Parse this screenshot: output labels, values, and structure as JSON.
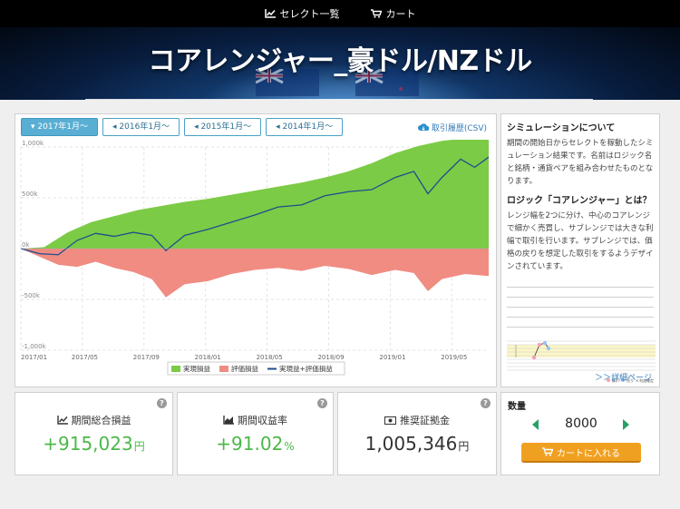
{
  "nav": {
    "items": [
      {
        "label": "セレクト一覧"
      },
      {
        "label": "カート"
      }
    ]
  },
  "hero": {
    "title": "コアレンジャー_豪ドル/NZドル"
  },
  "tabs": [
    {
      "label": "2017年1月～",
      "active": true
    },
    {
      "label": "2016年1月～",
      "active": false
    },
    {
      "label": "2015年1月～",
      "active": false
    },
    {
      "label": "2014年1月～",
      "active": false
    }
  ],
  "csv_label": "取引履歴(CSV)",
  "chart_data": {
    "type": "area",
    "x_ticks": [
      "2017/01",
      "2017/05",
      "2017/09",
      "2018/01",
      "2018/05",
      "2018/09",
      "2019/01",
      "2019/05"
    ],
    "y_ticks": [
      "1,000k",
      "500k",
      "0k",
      "-500k",
      "-1,000k"
    ],
    "ylim": [
      -1000000,
      1000000
    ],
    "grid": true,
    "legend_position": "bottom",
    "series": [
      {
        "name": "実現損益",
        "type": "area",
        "color": "#7ccb46",
        "points": [
          [
            0,
            0
          ],
          [
            0.05,
            15000
          ],
          [
            0.1,
            160000
          ],
          [
            0.15,
            260000
          ],
          [
            0.2,
            320000
          ],
          [
            0.25,
            380000
          ],
          [
            0.3,
            420000
          ],
          [
            0.35,
            460000
          ],
          [
            0.4,
            490000
          ],
          [
            0.45,
            530000
          ],
          [
            0.5,
            570000
          ],
          [
            0.55,
            610000
          ],
          [
            0.6,
            650000
          ],
          [
            0.65,
            700000
          ],
          [
            0.7,
            760000
          ],
          [
            0.75,
            840000
          ],
          [
            0.8,
            940000
          ],
          [
            0.85,
            1010000
          ],
          [
            0.9,
            1060000
          ],
          [
            0.95,
            1085000
          ],
          [
            1.0,
            1100000
          ]
        ]
      },
      {
        "name": "評価損益",
        "type": "area",
        "color": "#f08c82",
        "points": [
          [
            0,
            0
          ],
          [
            0.04,
            -80000
          ],
          [
            0.08,
            -160000
          ],
          [
            0.12,
            -180000
          ],
          [
            0.16,
            -130000
          ],
          [
            0.2,
            -190000
          ],
          [
            0.24,
            -230000
          ],
          [
            0.28,
            -300000
          ],
          [
            0.31,
            -480000
          ],
          [
            0.35,
            -350000
          ],
          [
            0.4,
            -320000
          ],
          [
            0.45,
            -250000
          ],
          [
            0.5,
            -210000
          ],
          [
            0.55,
            -190000
          ],
          [
            0.6,
            -220000
          ],
          [
            0.65,
            -170000
          ],
          [
            0.7,
            -200000
          ],
          [
            0.75,
            -260000
          ],
          [
            0.8,
            -210000
          ],
          [
            0.84,
            -240000
          ],
          [
            0.87,
            -420000
          ],
          [
            0.9,
            -300000
          ],
          [
            0.95,
            -250000
          ],
          [
            1.0,
            -270000
          ]
        ]
      },
      {
        "name": "実現益+評価損益",
        "type": "line",
        "color": "#1f4e8c",
        "points": [
          [
            0,
            0
          ],
          [
            0.04,
            -50000
          ],
          [
            0.08,
            -60000
          ],
          [
            0.12,
            80000
          ],
          [
            0.16,
            150000
          ],
          [
            0.2,
            120000
          ],
          [
            0.24,
            160000
          ],
          [
            0.28,
            130000
          ],
          [
            0.31,
            -20000
          ],
          [
            0.35,
            130000
          ],
          [
            0.4,
            190000
          ],
          [
            0.45,
            260000
          ],
          [
            0.5,
            330000
          ],
          [
            0.55,
            410000
          ],
          [
            0.6,
            430000
          ],
          [
            0.65,
            520000
          ],
          [
            0.7,
            560000
          ],
          [
            0.75,
            580000
          ],
          [
            0.8,
            700000
          ],
          [
            0.84,
            760000
          ],
          [
            0.87,
            540000
          ],
          [
            0.9,
            700000
          ],
          [
            0.94,
            880000
          ],
          [
            0.97,
            800000
          ],
          [
            1.0,
            900000
          ]
        ]
      }
    ]
  },
  "desc": {
    "h1": "シミュレーションについて",
    "p1": "期間の開始日からセレクトを稼動したシミュレーション結果です。名前はロジック名と銘柄・通貨ペアを組み合わせたものとなります。",
    "h2": "ロジック「コアレンジャー」とは？",
    "p2": "レンジ幅を2つに分け、中心のコアレンジで細かく売買し、サブレンジでは大きな利幅で取引を行います。サブレンジでは、価格の戻りを想定した取引をするようデザインされています。",
    "legend1": "買い",
    "legend2": "売り",
    "legend3": "利益確定",
    "detail_link": "＞＞詳細ページ"
  },
  "stats": {
    "total": {
      "label": "期間総合損益",
      "value": "+915,023",
      "unit": "円"
    },
    "rate": {
      "label": "期間収益率",
      "value": "+91.02",
      "unit": "%"
    },
    "margin": {
      "label": "推奨証拠金",
      "value": "1,005,346",
      "unit": "円"
    }
  },
  "quantity": {
    "label": "数量",
    "value": "8000",
    "button": "カートに入れる"
  }
}
